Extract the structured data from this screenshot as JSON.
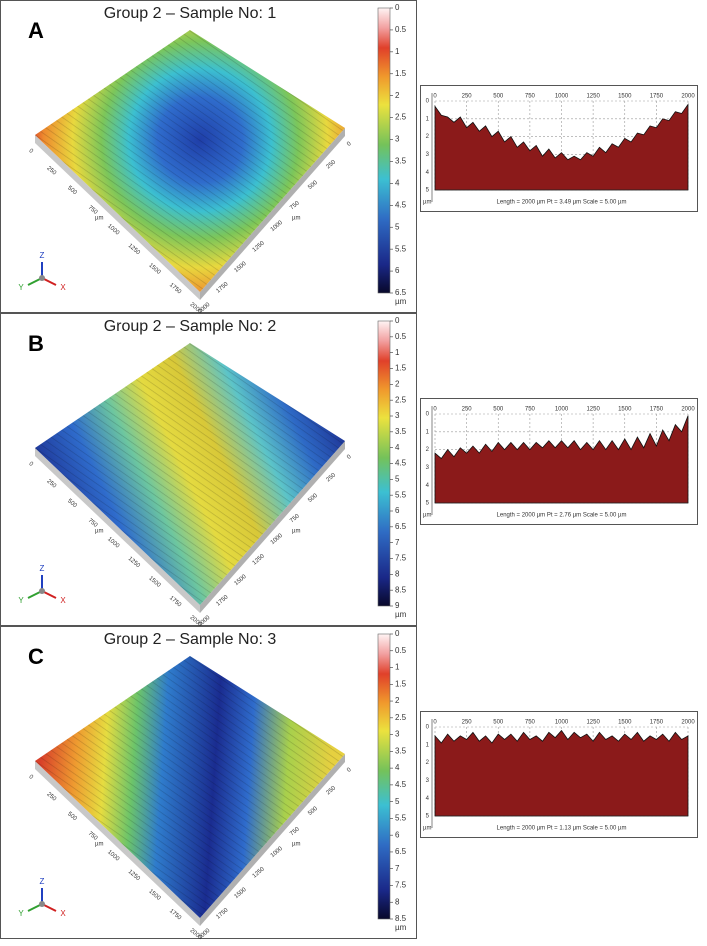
{
  "profile_x": [
    0,
    50,
    100,
    150,
    200,
    250,
    300,
    350,
    400,
    450,
    500,
    550,
    600,
    650,
    700,
    750,
    800,
    850,
    900,
    950,
    1000,
    1050,
    1100,
    1150,
    1200,
    1250,
    1300,
    1350,
    1400,
    1450,
    1500,
    1550,
    1600,
    1650,
    1700,
    1750,
    1800,
    1850,
    1900,
    1950,
    2000
  ],
  "panels": [
    {
      "label": "A",
      "title": "Group 2 – Sample No: 1",
      "colorbar_ticks": [
        0,
        0.5,
        1,
        1.5,
        2,
        2.5,
        3,
        3.5,
        4,
        4.5,
        5,
        5.5,
        6,
        6.5
      ],
      "colorbar_unit": "µm",
      "surface_ticks": [
        0,
        250,
        500,
        750,
        1000,
        1250,
        1500,
        1750,
        2000
      ],
      "surface_unit": "µm",
      "triad": [
        "Z",
        "Y",
        "X"
      ],
      "profile": {
        "xlim": [
          0,
          2000
        ],
        "xticks": [
          0,
          250,
          500,
          750,
          1000,
          1250,
          1500,
          1750,
          2000
        ],
        "ylim": [
          5,
          0
        ],
        "yticks": [
          0,
          1,
          2,
          3,
          4,
          5
        ],
        "unit": "µm",
        "caption": "Length = 2000 µm  Pt = 3.49 µm  Scale = 5.00 µm",
        "values": [
          0.3,
          0.8,
          0.9,
          1.2,
          0.9,
          1.5,
          1.2,
          1.7,
          1.4,
          2.0,
          1.7,
          2.3,
          2.0,
          2.6,
          2.3,
          2.8,
          2.5,
          3.1,
          2.7,
          3.2,
          2.9,
          3.3,
          3.1,
          3.3,
          2.9,
          3.1,
          2.6,
          2.9,
          2.4,
          2.6,
          2.1,
          2.3,
          1.8,
          1.9,
          1.4,
          1.5,
          1.0,
          1.1,
          0.6,
          0.7,
          0.2
        ]
      }
    },
    {
      "label": "B",
      "title": "Group 2 – Sample No: 2",
      "colorbar_ticks": [
        0,
        0.5,
        1,
        1.5,
        2,
        2.5,
        3,
        3.5,
        4,
        4.5,
        5,
        5.5,
        6,
        6.5,
        7,
        7.5,
        8,
        8.5,
        9
      ],
      "colorbar_unit": "µm",
      "surface_ticks": [
        0,
        250,
        500,
        750,
        1000,
        1250,
        1500,
        1750,
        2000
      ],
      "surface_unit": "µm",
      "triad": [
        "Z",
        "Y",
        "X"
      ],
      "profile": {
        "xlim": [
          0,
          2000
        ],
        "xticks": [
          0,
          250,
          500,
          750,
          1000,
          1250,
          1500,
          1750,
          2000
        ],
        "ylim": [
          5,
          0
        ],
        "yticks": [
          0,
          1,
          2,
          3,
          4,
          5
        ],
        "unit": "µm",
        "caption": "Length = 2000 µm  Pt = 2.76 µm  Scale = 5.00 µm",
        "values": [
          2.2,
          2.5,
          2.0,
          2.4,
          1.9,
          2.2,
          1.8,
          2.2,
          1.7,
          2.1,
          1.6,
          2.0,
          1.6,
          2.0,
          1.6,
          2.0,
          1.6,
          1.9,
          1.5,
          1.9,
          1.5,
          1.9,
          1.5,
          2.0,
          1.6,
          2.0,
          1.5,
          2.0,
          1.5,
          2.0,
          1.4,
          2.0,
          1.3,
          1.9,
          1.1,
          1.8,
          0.9,
          1.5,
          0.6,
          1.0,
          0.1
        ]
      }
    },
    {
      "label": "C",
      "title": "Group 2 – Sample No: 3",
      "colorbar_ticks": [
        0,
        0.5,
        1,
        1.5,
        2,
        2.5,
        3,
        3.5,
        4,
        4.5,
        5,
        5.5,
        6,
        6.5,
        7,
        7.5,
        8,
        8.5
      ],
      "colorbar_unit": "µm",
      "surface_ticks": [
        0,
        250,
        500,
        750,
        1000,
        1250,
        1500,
        1750,
        2000
      ],
      "surface_unit": "µm",
      "triad": [
        "Z",
        "Y",
        "X"
      ],
      "profile": {
        "xlim": [
          0,
          2000
        ],
        "xticks": [
          0,
          250,
          500,
          750,
          1000,
          1250,
          1500,
          1750,
          2000
        ],
        "ylim": [
          5,
          0
        ],
        "yticks": [
          0,
          1,
          2,
          3,
          4,
          5
        ],
        "unit": "µm",
        "caption": "Length = 2000 µm  Pt = 1.13 µm  Scale = 5.00 µm",
        "values": [
          0.5,
          0.9,
          0.4,
          0.8,
          0.5,
          0.7,
          0.3,
          0.8,
          0.5,
          0.9,
          0.4,
          0.7,
          0.4,
          0.8,
          0.3,
          0.7,
          0.5,
          0.8,
          0.3,
          0.6,
          0.2,
          0.7,
          0.3,
          0.6,
          0.4,
          0.8,
          0.3,
          0.7,
          0.5,
          0.8,
          0.4,
          0.7,
          0.3,
          0.8,
          0.5,
          0.7,
          0.4,
          0.8,
          0.3,
          0.7,
          0.5
        ]
      }
    }
  ]
}
